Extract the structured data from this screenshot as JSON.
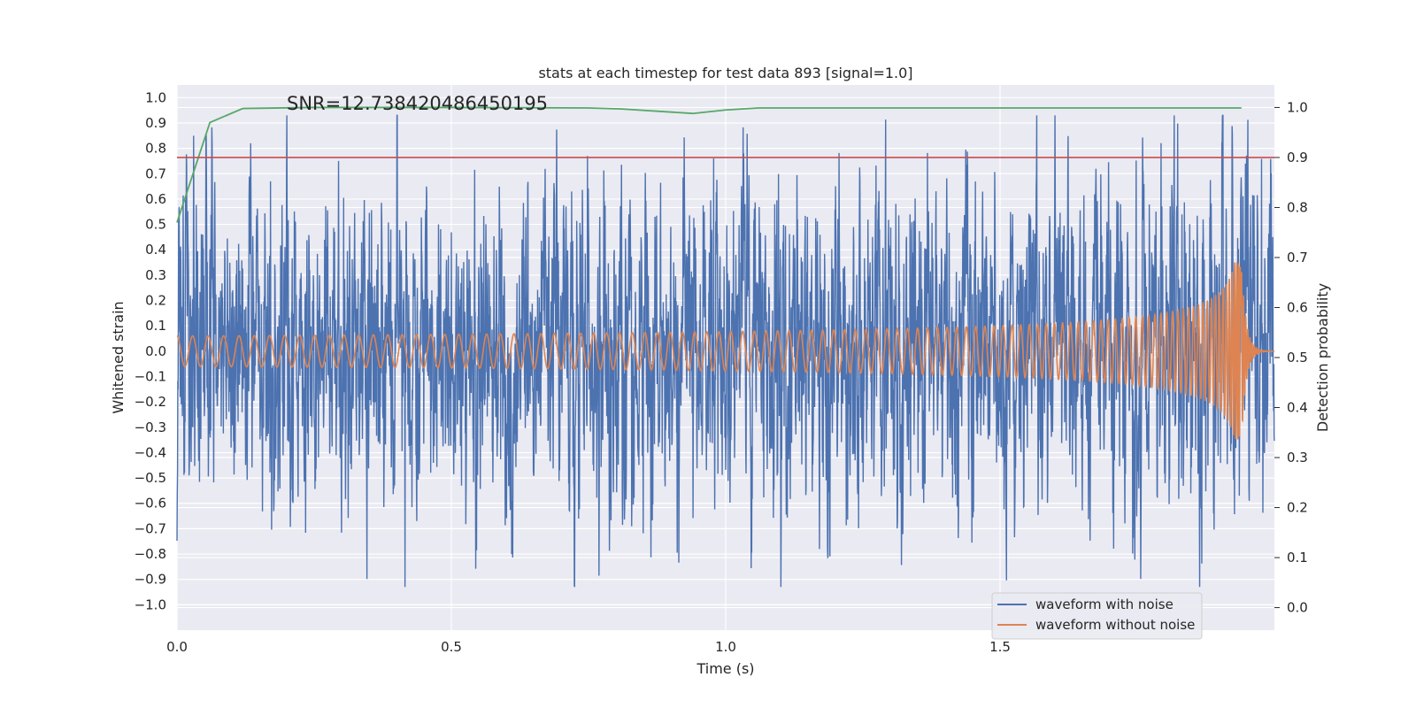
{
  "chart_data": {
    "type": "line",
    "title": "stats at each timestep for test data 893 [signal=1.0]",
    "annotation": "SNR=12.738420486450195",
    "xlabel": "Time (s)",
    "ylabel": "Whitened strain",
    "y2label": "Detection probability",
    "xlim": [
      0.0,
      2.0
    ],
    "ylim": [
      -1.1,
      1.05
    ],
    "y2lim": [
      -0.045,
      1.045
    ],
    "xticks": [
      "0.0",
      "0.5",
      "1.0",
      "1.5"
    ],
    "yticks": [
      "1.0",
      "0.9",
      "0.8",
      "0.7",
      "0.6",
      "0.5",
      "0.4",
      "0.3",
      "0.2",
      "0.1",
      "0.0",
      "-0.1",
      "-0.2",
      "-0.3",
      "-0.4",
      "-0.5",
      "-0.6",
      "-0.7",
      "-0.8",
      "-0.9",
      "-1.0"
    ],
    "y2ticks": [
      "1.0",
      "0.9",
      "0.8",
      "0.7",
      "0.6",
      "0.5",
      "0.4",
      "0.3",
      "0.2",
      "0.1",
      "0.0"
    ],
    "grid": true,
    "legend_position": "lower-right",
    "series": [
      {
        "name": "waveform with noise",
        "color": "#4c72b0",
        "axis": "left",
        "description_values": "dense noisy strain, roughly within -0.93 to 0.93",
        "sample_rate": 2048,
        "amplitude_envelope": 0.45
      },
      {
        "name": "waveform without noise",
        "color": "#dd8452",
        "axis": "left",
        "chirp": {
          "start_amplitude": 0.06,
          "peak_amplitude": 0.35,
          "start_frequency_hz": 35,
          "merger_time": 1.94,
          "end_time": 2.0
        }
      },
      {
        "name": "",
        "color": "#55a868",
        "axis": "right",
        "x": [
          0.0,
          0.06,
          0.12,
          0.25,
          0.5,
          0.75,
          0.81,
          0.94,
          1.0,
          1.06,
          1.25,
          1.5,
          1.75,
          1.94
        ],
        "y": [
          0.77,
          0.97,
          0.998,
          1.0,
          1.0,
          0.999,
          0.997,
          0.988,
          0.995,
          0.999,
          0.999,
          0.999,
          0.999,
          0.999
        ]
      },
      {
        "name": "",
        "color": "#c44e52",
        "axis": "right",
        "x": [
          0.0,
          2.0
        ],
        "y": [
          0.9,
          0.9
        ]
      }
    ],
    "legend": [
      "waveform with noise",
      "waveform without noise"
    ]
  }
}
